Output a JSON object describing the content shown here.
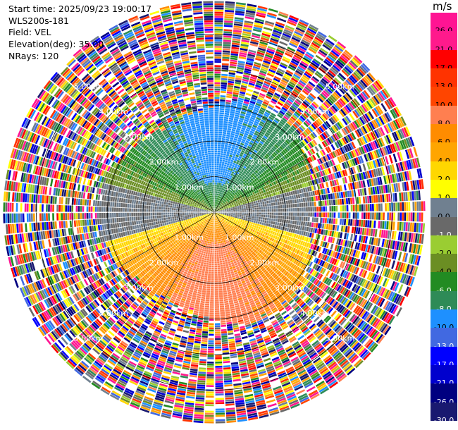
{
  "header": {
    "start_time": "Start time: 2025/09/23 19:00:17",
    "instrument": "WLS200s-181",
    "field": "Field: VEL",
    "elevation": "Elevation(deg): 35.00",
    "nrays": "NRays: 120"
  },
  "colorbar": {
    "unit": "m/s",
    "ticks": [
      "26.0",
      "21.0",
      "17.0",
      "13.0",
      "10.0",
      "8.0",
      "6.0",
      "4.0",
      "2.0",
      "1.0",
      "0.0",
      "-1.0",
      "-2.0",
      "-4.0",
      "-6.0",
      "-8.0",
      "-10.0",
      "-13.0",
      "-17.0",
      "-21.0",
      "-26.0",
      "-30.0"
    ],
    "colors": [
      "#ff1493",
      "#ff1a8c",
      "#ff0000",
      "#ff3300",
      "#ff4500",
      "#ff7f50",
      "#ff8c00",
      "#ffa500",
      "#ffd700",
      "#ffff00",
      "#708090",
      "#696969",
      "#9acd32",
      "#6b8e23",
      "#228b22",
      "#2e8b57",
      "#1e90ff",
      "#4169e1",
      "#0000ff",
      "#0000cd",
      "#000080",
      "#191970"
    ],
    "label_colors": [
      "#000000",
      "#000000",
      "#000000",
      "#000000",
      "#000000",
      "#000000",
      "#000000",
      "#000000",
      "#000000",
      "#000000",
      "#000000",
      "#ffffff",
      "#000000",
      "#000000",
      "#ffffff",
      "#ffffff",
      "#000000",
      "#ffffff",
      "#ffffff",
      "#ffffff",
      "#ffffff",
      "#ffffff"
    ]
  },
  "chart_data": {
    "type": "heatmap",
    "projection": "polar PPI",
    "field": "VEL",
    "units": "m/s",
    "n_rays": 120,
    "max_range_km": 6.0,
    "range_rings_km": [
      1.0,
      2.0,
      3.0,
      4.0,
      5.0
    ],
    "ring_labels": [
      "1.00km",
      "2.00km",
      "3.00km",
      "4.00km",
      "5.00km"
    ],
    "color_levels": [
      -30,
      -26,
      -21,
      -17,
      -13,
      -10,
      -8,
      -6,
      -4,
      -2,
      -1,
      0,
      1,
      2,
      4,
      6,
      8,
      10,
      13,
      17,
      21,
      26
    ],
    "coherent_region": {
      "description_ranges_km": [
        0,
        3.0
      ],
      "north_sector_ms": -8.0,
      "south_sector_ms": 8.0,
      "near_zero_band_east_west_ms": 0.0
    },
    "noise_region_km": [
      3.0,
      5.9
    ]
  }
}
